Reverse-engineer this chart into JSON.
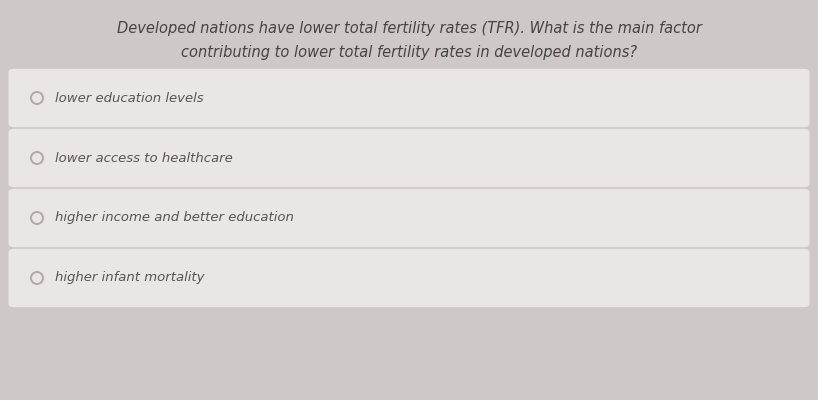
{
  "title_line1": "Developed nations have lower total fertility rates (TFR). What is the main factor",
  "title_line2": "contributing to lower total fertility rates in developed nations?",
  "options": [
    "lower education levels",
    "lower access to healthcare",
    "higher income and better education",
    "higher infant mortality"
  ],
  "bg_color": "#cec8c8",
  "card_color": "#e9e6e5",
  "title_color": "#444444",
  "option_text_color": "#555555",
  "radio_color": "#b0aaaa",
  "title_fontsize": 10.5,
  "option_fontsize": 9.5
}
